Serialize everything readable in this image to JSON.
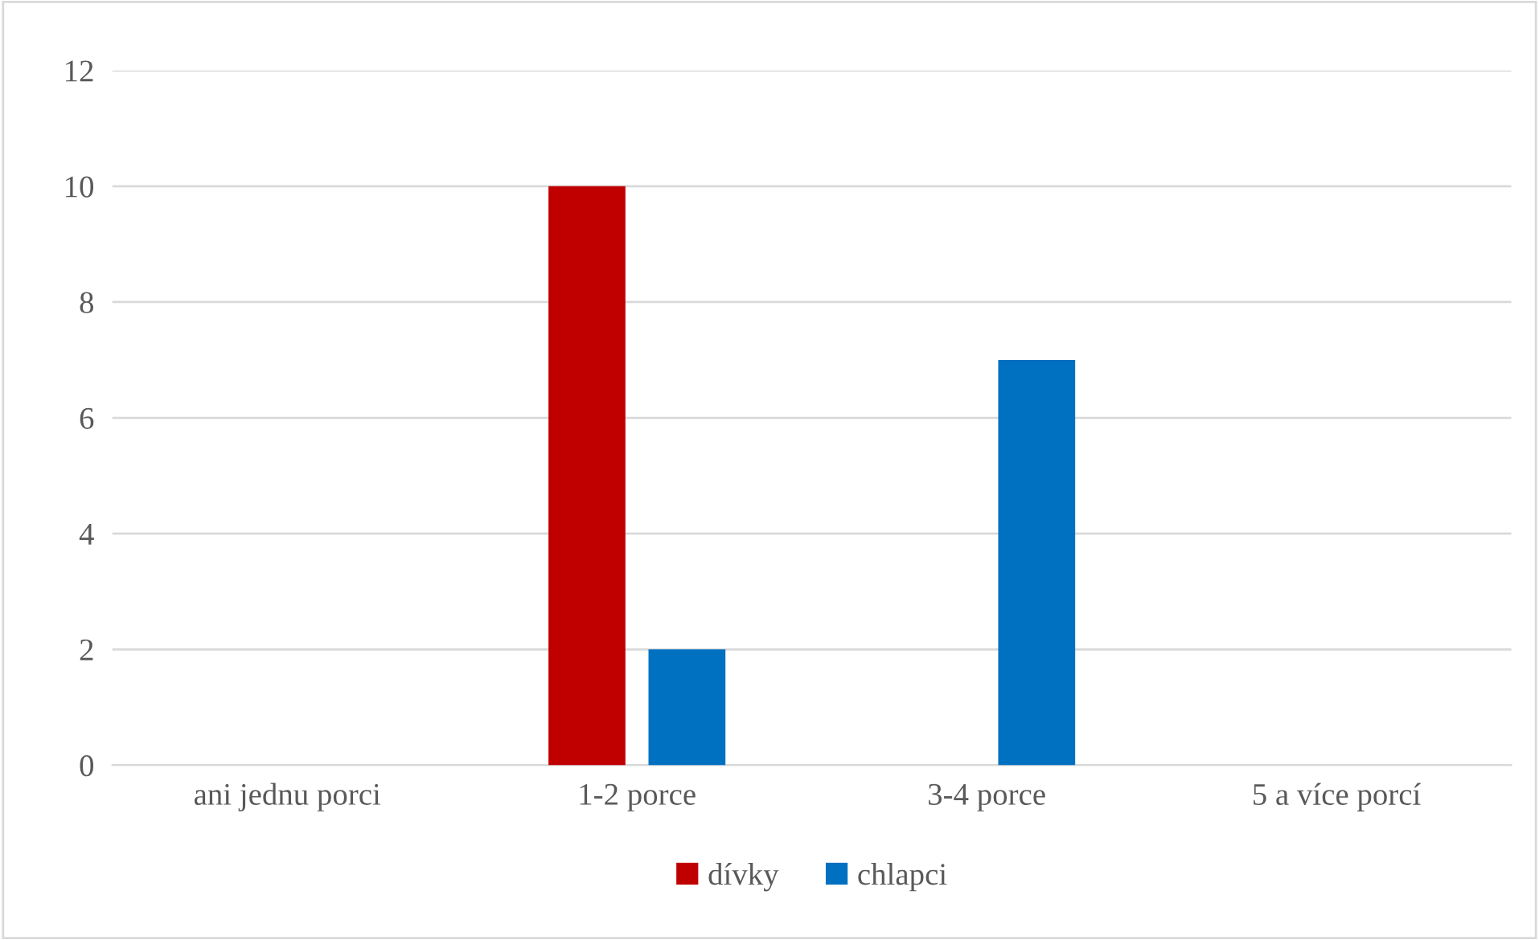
{
  "chart_data": {
    "type": "bar",
    "categories": [
      "ani jednu porci",
      "1-2 porce",
      "3-4 porce",
      "5 a více porcí"
    ],
    "series": [
      {
        "name": "dívky",
        "color": "#c00000",
        "values": [
          0,
          10,
          0,
          0
        ]
      },
      {
        "name": "chlapci",
        "color": "#0070c0",
        "values": [
          0,
          2,
          7,
          0
        ]
      }
    ],
    "ylim": [
      0,
      12
    ],
    "yticks": [
      0,
      2,
      4,
      6,
      8,
      10,
      12
    ],
    "grid": "y",
    "legend": "bottom"
  }
}
